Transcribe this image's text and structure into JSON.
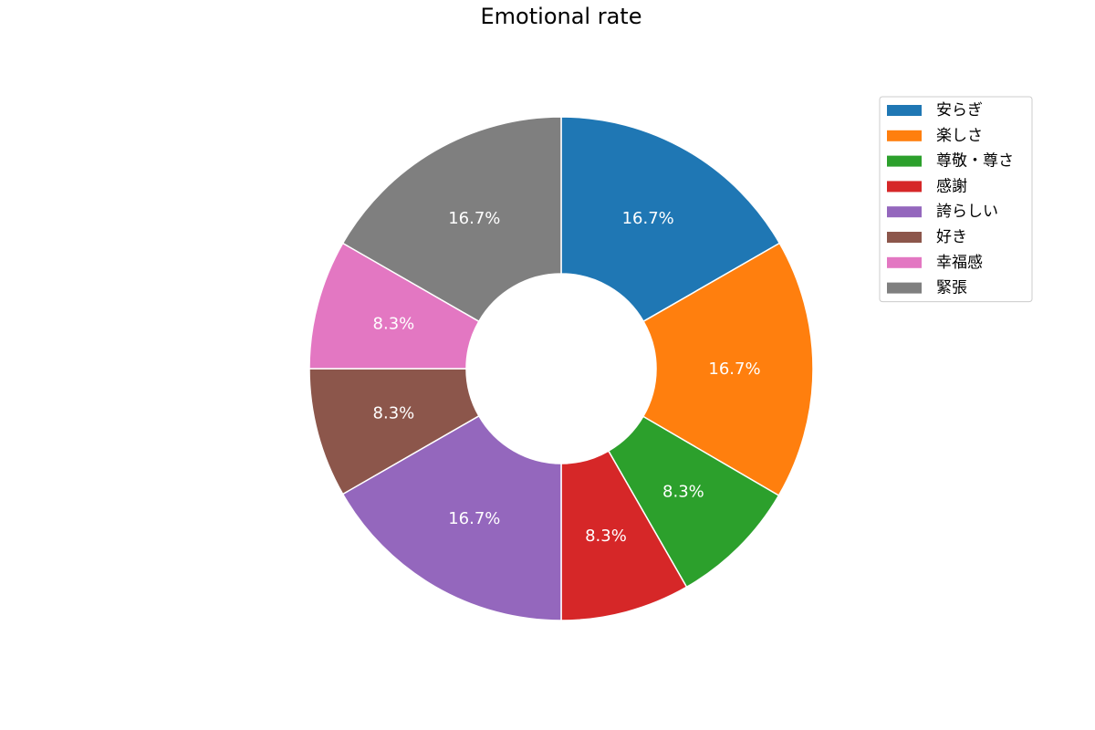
{
  "chart_data": {
    "type": "pie",
    "title": "Emotional rate",
    "donut": true,
    "start_angle_deg": 90,
    "direction": "clockwise",
    "legend_position": "top-right",
    "slices": [
      {
        "label": "安らぎ",
        "value": 16.7,
        "pct_label": "16.7%",
        "color": "#1f77b4"
      },
      {
        "label": "楽しさ",
        "value": 16.7,
        "pct_label": "16.7%",
        "color": "#ff7f0e"
      },
      {
        "label": "尊敬・尊さ",
        "value": 8.3,
        "pct_label": "8.3%",
        "color": "#2ca02c"
      },
      {
        "label": "感謝",
        "value": 8.3,
        "pct_label": "8.3%",
        "color": "#d62728"
      },
      {
        "label": "誇らしい",
        "value": 16.7,
        "pct_label": "16.7%",
        "color": "#9467bd"
      },
      {
        "label": "好き",
        "value": 8.3,
        "pct_label": "8.3%",
        "color": "#8c564b"
      },
      {
        "label": "幸福感",
        "value": 8.3,
        "pct_label": "8.3%",
        "color": "#e377c2"
      },
      {
        "label": "緊張",
        "value": 16.7,
        "pct_label": "16.7%",
        "color": "#7f7f7f"
      }
    ]
  }
}
